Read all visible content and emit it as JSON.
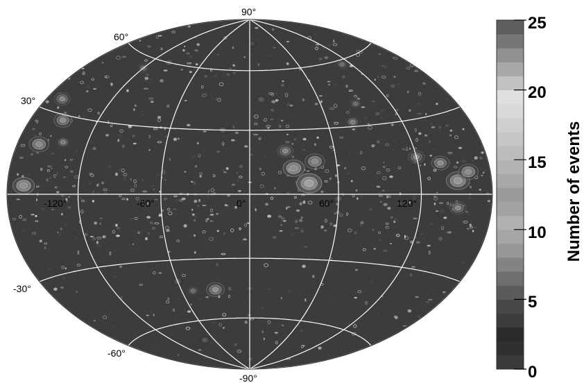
{
  "chart_data": {
    "type": "heatmap",
    "projection": "Hammer-Aitoff (full sky)",
    "title": "",
    "grid": true,
    "background_color": "#3c3c3c",
    "grid_color": "#ffffff",
    "latitude_lines": [
      -60,
      -30,
      0,
      30,
      60
    ],
    "longitude_lines": [
      -180,
      -120,
      -60,
      0,
      60,
      120,
      180
    ],
    "latitude_labels": [
      "90°",
      "60°",
      "30°",
      "-30°",
      "-60°",
      "-90°"
    ],
    "longitude_labels": [
      "-120°",
      "-60°",
      "0°",
      "60°",
      "120°"
    ],
    "colorbar": {
      "title": "Number of events",
      "min": 0,
      "max": 25,
      "ticks": [
        0,
        5,
        10,
        15,
        20,
        25
      ],
      "tick_labels": [
        "0",
        "5",
        "10",
        "15",
        "20",
        "25"
      ],
      "placement": "right",
      "bands": [
        {
          "from": 0,
          "to": 1,
          "color": "#3a3a3a"
        },
        {
          "from": 1,
          "to": 2,
          "color": "#303030"
        },
        {
          "from": 2,
          "to": 3,
          "color": "#2a2a2a"
        },
        {
          "from": 3,
          "to": 4,
          "color": "#3c3c3c"
        },
        {
          "from": 4,
          "to": 5,
          "color": "#474747"
        },
        {
          "from": 5,
          "to": 6,
          "color": "#5a5a5a"
        },
        {
          "from": 6,
          "to": 7,
          "color": "#6e6e6e"
        },
        {
          "from": 7,
          "to": 8,
          "color": "#838383"
        },
        {
          "from": 8,
          "to": 9,
          "color": "#979797"
        },
        {
          "from": 9,
          "to": 10,
          "color": "#a6a6a6"
        },
        {
          "from": 10,
          "to": 11,
          "color": "#b1b1b1"
        },
        {
          "from": 11,
          "to": 12,
          "color": "#a2a2a2"
        },
        {
          "from": 12,
          "to": 13,
          "color": "#9a9a9a"
        },
        {
          "from": 13,
          "to": 14,
          "color": "#a8a8a8"
        },
        {
          "from": 14,
          "to": 15,
          "color": "#b4b4b4"
        },
        {
          "from": 15,
          "to": 16,
          "color": "#bcbcbc"
        },
        {
          "from": 16,
          "to": 17,
          "color": "#c6c6c6"
        },
        {
          "from": 17,
          "to": 18,
          "color": "#cfcfcf"
        },
        {
          "from": 18,
          "to": 19,
          "color": "#d9d9d9"
        },
        {
          "from": 19,
          "to": 20,
          "color": "#e0e0e0"
        },
        {
          "from": 20,
          "to": 21,
          "color": "#c2c2c2"
        },
        {
          "from": 21,
          "to": 22,
          "color": "#a8a8a8"
        },
        {
          "from": 22,
          "to": 23,
          "color": "#909090"
        },
        {
          "from": 23,
          "to": 24,
          "color": "#767676"
        },
        {
          "from": 24,
          "to": 25,
          "color": "#5e5e5e"
        }
      ]
    },
    "hotspots": [
      {
        "lon": 40,
        "lat": 5,
        "events": 14
      },
      {
        "lon": 30,
        "lat": 12,
        "events": 12
      },
      {
        "lon": 45,
        "lat": 15,
        "events": 11
      },
      {
        "lon": 25,
        "lat": 20,
        "events": 9
      },
      {
        "lon": 150,
        "lat": 5,
        "events": 13
      },
      {
        "lon": 160,
        "lat": 8,
        "events": 11
      },
      {
        "lon": 138,
        "lat": 12,
        "events": 10
      },
      {
        "lon": 120,
        "lat": 15,
        "events": 9
      },
      {
        "lon": -165,
        "lat": 3,
        "events": 12
      },
      {
        "lon": -160,
        "lat": 18,
        "events": 11
      },
      {
        "lon": -150,
        "lat": 28,
        "events": 10
      },
      {
        "lon": -140,
        "lat": 20,
        "events": 8
      },
      {
        "lon": -165,
        "lat": 35,
        "events": 9
      },
      {
        "lon": -30,
        "lat": -45,
        "events": 10
      },
      {
        "lon": -50,
        "lat": -45,
        "events": 7
      },
      {
        "lon": -60,
        "lat": -40,
        "events": 6
      },
      {
        "lon": -75,
        "lat": -70,
        "events": 6
      },
      {
        "lon": 60,
        "lat": -2,
        "events": 6
      },
      {
        "lon": -120,
        "lat": 55,
        "events": 7
      },
      {
        "lon": -100,
        "lat": 60,
        "events": 6
      },
      {
        "lon": 110,
        "lat": 58,
        "events": 7
      },
      {
        "lon": 90,
        "lat": 40,
        "events": 7
      },
      {
        "lon": 80,
        "lat": 32,
        "events": 8
      },
      {
        "lon": 10,
        "lat": 45,
        "events": 6
      },
      {
        "lon": -20,
        "lat": 30,
        "events": 6
      },
      {
        "lon": 5,
        "lat": 75,
        "events": 5
      },
      {
        "lon": 150,
        "lat": -5,
        "events": 9
      }
    ]
  }
}
